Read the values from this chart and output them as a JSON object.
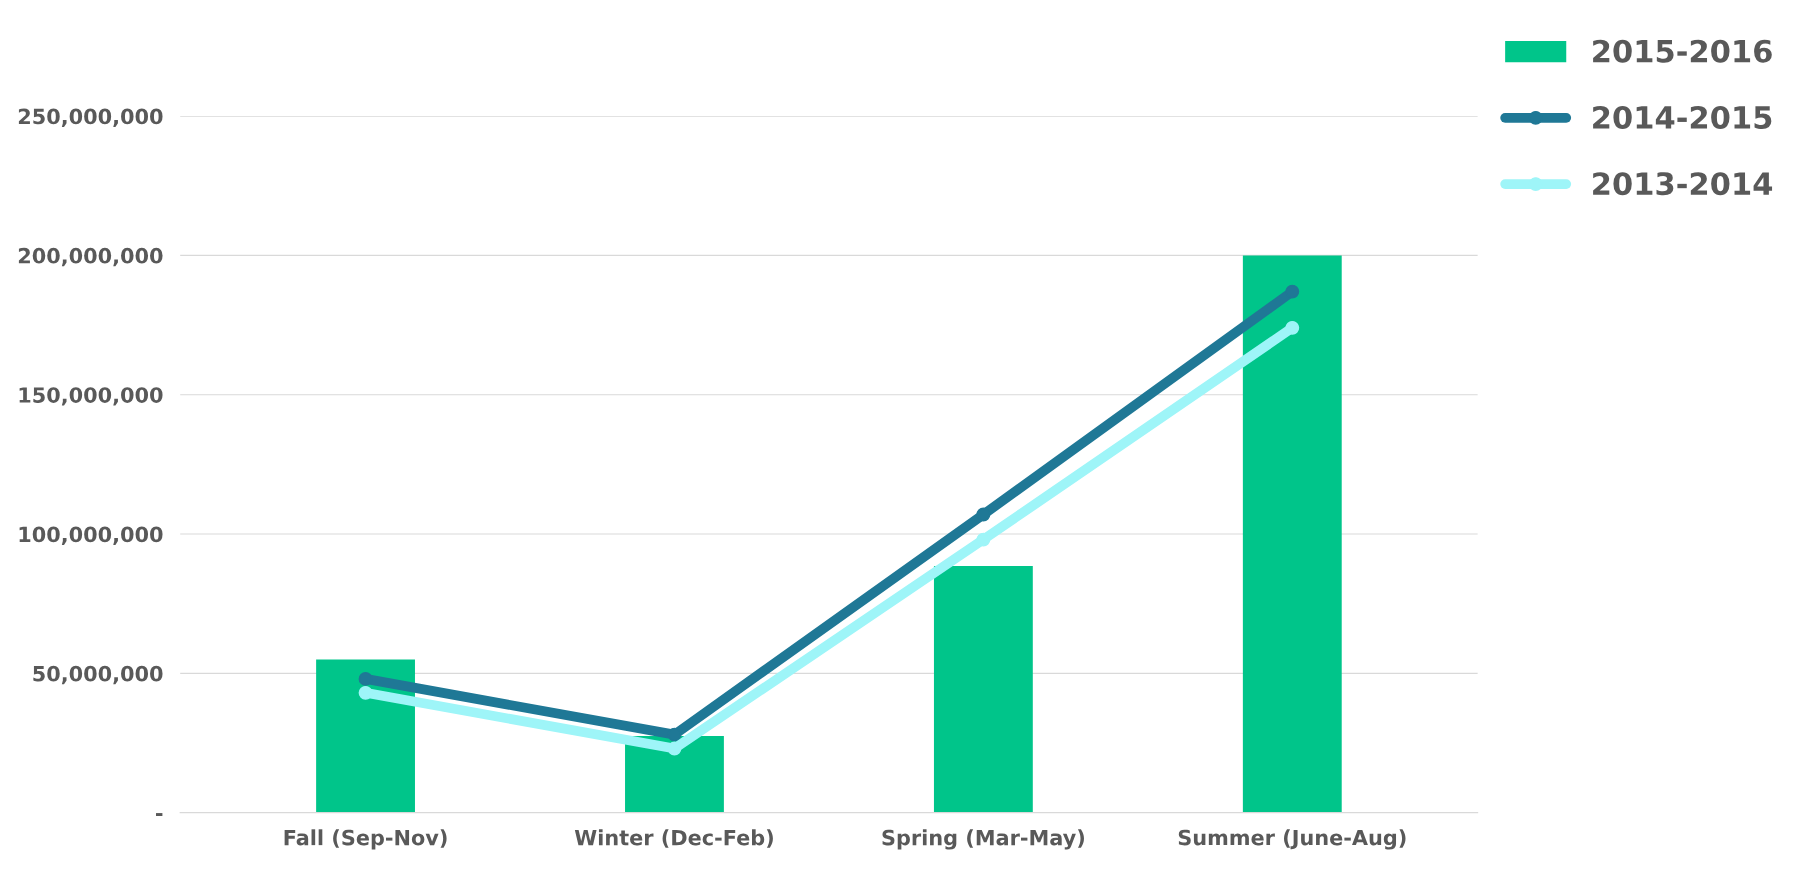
{
  "chart_data": {
    "type": "bar",
    "categories": [
      "Fall (Sep-Nov)",
      "Winter (Dec-Feb)",
      "Spring (Mar-May)",
      "Summer (June-Aug)"
    ],
    "series": [
      {
        "name": "2015-2016",
        "color": "#00c58a",
        "values": [
          55000000,
          27500000,
          88500000,
          200000000
        ]
      },
      {
        "name": "2014-2015",
        "type": "line",
        "color": "#1f7896",
        "values": [
          48000000,
          28000000,
          107000000,
          187000000
        ]
      },
      {
        "name": "2013-2014",
        "type": "line",
        "color": "#9ef5f8",
        "values": [
          43000000,
          23000000,
          98000000,
          174000000
        ]
      }
    ],
    "ylim": [
      0,
      250000000
    ],
    "yticks": [
      {
        "value": 0,
        "label": "-"
      },
      {
        "value": 50000000,
        "label": "50,000,000"
      },
      {
        "value": 100000000,
        "label": "100,000,000"
      },
      {
        "value": 150000000,
        "label": "150,000,000"
      },
      {
        "value": 200000000,
        "label": "200,000,000"
      },
      {
        "value": 250000000,
        "label": "250,000,000"
      }
    ],
    "grid": "y",
    "legend": "top right",
    "marker": "circle"
  }
}
